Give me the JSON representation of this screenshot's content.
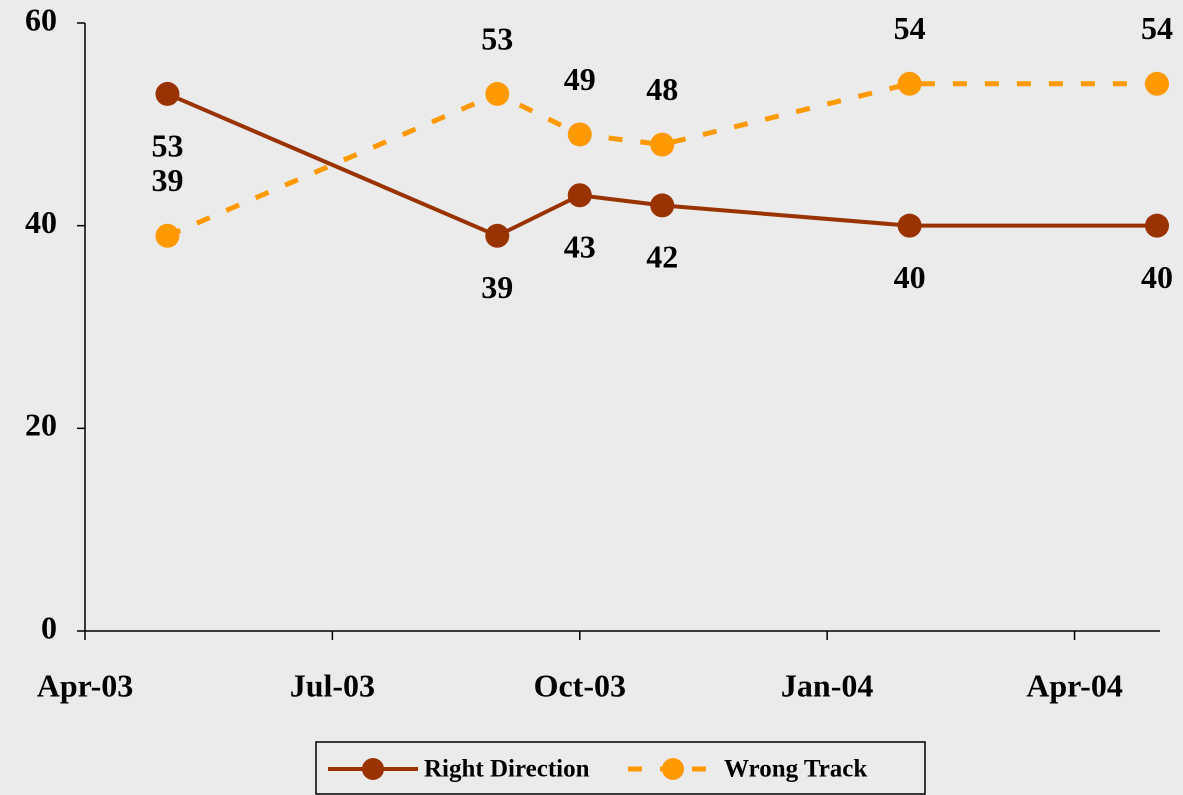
{
  "chart_data": {
    "type": "line",
    "x": [
      "2003-05",
      "2003-09",
      "2003-10",
      "2003-11",
      "2004-02",
      "2004-05"
    ],
    "series": [
      {
        "name": "Right Direction",
        "color": "#993300",
        "dash": false,
        "values": [
          53,
          39,
          43,
          42,
          40,
          40
        ]
      },
      {
        "name": "Wrong Track",
        "color": "#ff9900",
        "dash": true,
        "values": [
          39,
          53,
          49,
          48,
          54,
          54
        ]
      }
    ],
    "xlim": [
      "2003-04",
      "2004-05"
    ],
    "xticks": [
      {
        "value": "2003-04",
        "label": "Apr-03"
      },
      {
        "value": "2003-07",
        "label": "Jul-03"
      },
      {
        "value": "2003-10",
        "label": "Oct-03"
      },
      {
        "value": "2004-01",
        "label": "Jan-04"
      },
      {
        "value": "2004-04",
        "label": "Apr-04"
      }
    ],
    "ylim": [
      0,
      60
    ],
    "yticks": [
      0,
      20,
      40,
      60
    ],
    "legend": "bottom"
  }
}
